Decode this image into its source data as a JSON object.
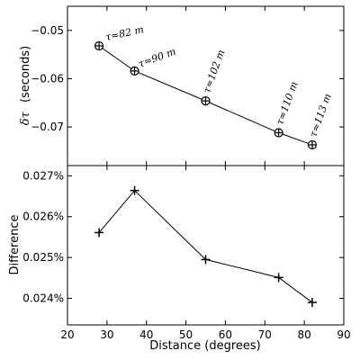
{
  "chart_data": [
    {
      "type": "line",
      "ylabel_symbol": "δτ",
      "ylabel_unit": "(seconds)",
      "xlim": [
        20,
        90
      ],
      "ylim": [
        -0.078,
        -0.045
      ],
      "yticks": [
        -0.05,
        -0.06,
        -0.07
      ],
      "ytick_labels": [
        "−0.05",
        "−0.06",
        "−0.07"
      ],
      "marker": "circle-plus",
      "x": [
        28,
        37,
        55,
        73.5,
        82
      ],
      "y": [
        -0.0532,
        -0.0584,
        -0.0646,
        -0.0712,
        -0.0737
      ],
      "annotations": [
        "τ≈82 m",
        "τ≈90 m",
        "τ≈102 m",
        "τ≈110 m",
        "τ≈113 m"
      ]
    },
    {
      "type": "line",
      "xlabel": "Distance (degrees)",
      "ylabel": "Difference",
      "xlim": [
        20,
        90
      ],
      "ylim": [
        0.02335,
        0.02725
      ],
      "xticks": [
        20,
        30,
        40,
        50,
        60,
        70,
        80,
        90
      ],
      "xtick_labels": [
        "20",
        "30",
        "40",
        "50",
        "60",
        "70",
        "80",
        "90"
      ],
      "yticks": [
        0.024,
        0.025,
        0.026,
        0.027
      ],
      "ytick_labels": [
        "0.024%",
        "0.025%",
        "0.026%",
        "0.027%"
      ],
      "marker": "plus",
      "x": [
        28,
        37,
        55,
        73.5,
        82
      ],
      "y": [
        0.02561,
        0.02664,
        0.02495,
        0.02451,
        0.0239
      ]
    }
  ]
}
